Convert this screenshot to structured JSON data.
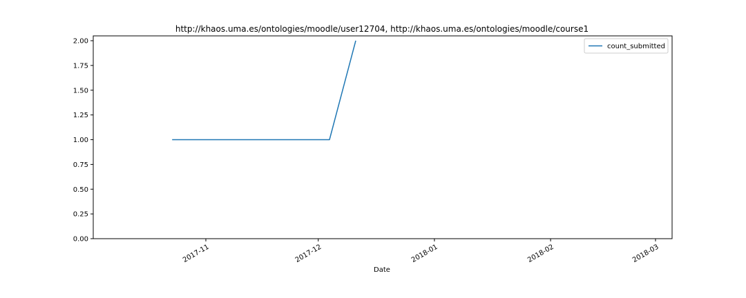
{
  "chart_data": {
    "type": "line",
    "title": "http://khaos.uma.es/ontologies/moodle/user12704, http://khaos.uma.es/ontologies/moodle/course1",
    "xlabel": "Date",
    "ylabel": "",
    "x_axis_type": "date",
    "xlim": [
      "2017-10-02",
      "2018-03-01"
    ],
    "ylim": [
      0,
      2
    ],
    "x_ticks": [
      {
        "date": "2017-11-01",
        "label": "2017-11"
      },
      {
        "date": "2017-12-01",
        "label": "2017-12"
      },
      {
        "date": "2018-01-01",
        "label": "2018-01"
      },
      {
        "date": "2018-02-01",
        "label": "2018-02"
      },
      {
        "date": "2018-03-01",
        "label": "2018-03"
      }
    ],
    "y_ticks": [
      {
        "value": 0.0,
        "label": "0.00"
      },
      {
        "value": 0.25,
        "label": "0.25"
      },
      {
        "value": 0.5,
        "label": "0.50"
      },
      {
        "value": 0.75,
        "label": "0.75"
      },
      {
        "value": 1.0,
        "label": "1.00"
      },
      {
        "value": 1.25,
        "label": "1.25"
      },
      {
        "value": 1.5,
        "label": "1.50"
      },
      {
        "value": 1.75,
        "label": "1.75"
      },
      {
        "value": 2.0,
        "label": "2.00"
      }
    ],
    "grid": false,
    "legend_position": "top-right",
    "series": [
      {
        "name": "count_submitted",
        "color": "#1f77b4",
        "points": [
          {
            "x": "2017-10-23",
            "y": 1
          },
          {
            "x": "2017-12-04",
            "y": 1
          },
          {
            "x": "2017-12-11",
            "y": 2
          }
        ]
      }
    ]
  }
}
